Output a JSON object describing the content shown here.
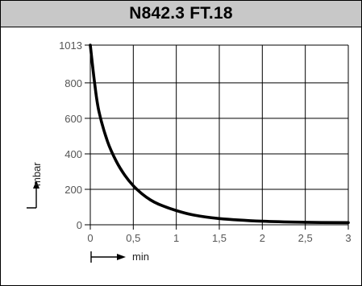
{
  "title": "N842.3 FT.18",
  "chart_data": {
    "type": "line",
    "title": "N842.3 FT.18",
    "xlabel": "min",
    "ylabel": "mbar",
    "xlim": [
      0,
      3
    ],
    "ylim": [
      0,
      1013
    ],
    "x_ticks": [
      0,
      0.5,
      1,
      1.5,
      2,
      2.5,
      3
    ],
    "x_tick_labels": [
      "0",
      "0,5",
      "1",
      "1,5",
      "2",
      "2,5",
      "3"
    ],
    "y_ticks": [
      0,
      200,
      400,
      600,
      800,
      1013
    ],
    "y_tick_labels": [
      "0",
      "200",
      "400",
      "600",
      "800",
      "1013"
    ],
    "grid": true,
    "series": [
      {
        "values_x": [
          0,
          0.05,
          0.1,
          0.2,
          0.3,
          0.4,
          0.5,
          0.6,
          0.7,
          0.8,
          1.0,
          1.2,
          1.5,
          2.0,
          2.5,
          3.0
        ],
        "values_y": [
          1013,
          800,
          640,
          470,
          360,
          280,
          220,
          175,
          140,
          115,
          80,
          55,
          35,
          20,
          14,
          12
        ]
      }
    ]
  }
}
